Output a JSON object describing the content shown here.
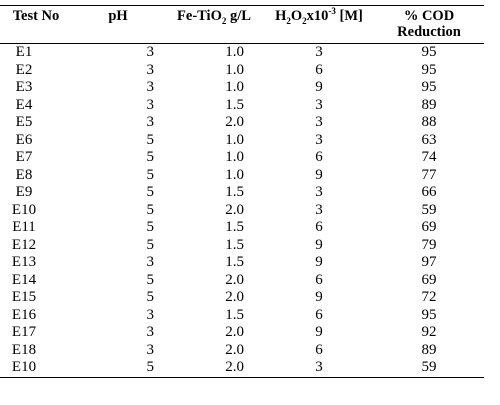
{
  "headers": {
    "test_no": "Test No",
    "ph": "pH",
    "fe_tio2_prefix": "Fe-TiO",
    "fe_tio2_sub": "2",
    "fe_tio2_suffix": " g/L",
    "h2o2_h": "H",
    "h2o2_sub1": "2",
    "h2o2_o": "O",
    "h2o2_sub2": "2",
    "h2o2_x": "x10",
    "h2o2_sup": "-3",
    "h2o2_unit": " [M]",
    "cod_line1": "% COD",
    "cod_line2": "Reduction"
  },
  "rows": [
    {
      "test": "E1",
      "ph": "3",
      "fe": "1.0",
      "h2o2": "3",
      "cod": "95"
    },
    {
      "test": "E2",
      "ph": "3",
      "fe": "1.0",
      "h2o2": "6",
      "cod": "95"
    },
    {
      "test": "E3",
      "ph": "3",
      "fe": "1.0",
      "h2o2": "9",
      "cod": "95"
    },
    {
      "test": "E4",
      "ph": "3",
      "fe": "1.5",
      "h2o2": "3",
      "cod": "89"
    },
    {
      "test": "E5",
      "ph": "3",
      "fe": "2.0",
      "h2o2": "3",
      "cod": "88"
    },
    {
      "test": "E6",
      "ph": "5",
      "fe": "1.0",
      "h2o2": "3",
      "cod": "63"
    },
    {
      "test": "E7",
      "ph": "5",
      "fe": "1.0",
      "h2o2": "6",
      "cod": "74"
    },
    {
      "test": "E8",
      "ph": "5",
      "fe": "1.0",
      "h2o2": "9",
      "cod": "77"
    },
    {
      "test": "E9",
      "ph": "5",
      "fe": "1.5",
      "h2o2": "3",
      "cod": "66"
    },
    {
      "test": "E10",
      "ph": "5",
      "fe": "2.0",
      "h2o2": "3",
      "cod": "59"
    },
    {
      "test": "E11",
      "ph": "5",
      "fe": "1.5",
      "h2o2": "6",
      "cod": "69"
    },
    {
      "test": "E12",
      "ph": "5",
      "fe": "1.5",
      "h2o2": "9",
      "cod": "79"
    },
    {
      "test": "E13",
      "ph": "3",
      "fe": "1.5",
      "h2o2": "9",
      "cod": "97"
    },
    {
      "test": "E14",
      "ph": "5",
      "fe": "2.0",
      "h2o2": "6",
      "cod": "69"
    },
    {
      "test": "E15",
      "ph": "5",
      "fe": "2.0",
      "h2o2": "9",
      "cod": "72"
    },
    {
      "test": "E16",
      "ph": "3",
      "fe": "1.5",
      "h2o2": "6",
      "cod": "95"
    },
    {
      "test": "E17",
      "ph": "3",
      "fe": "2.0",
      "h2o2": "9",
      "cod": "92"
    },
    {
      "test": "E18",
      "ph": "3",
      "fe": "2.0",
      "h2o2": "6",
      "cod": "89"
    },
    {
      "test": "E10",
      "ph": "5",
      "fe": "2.0",
      "h2o2": "3",
      "cod": "59"
    }
  ]
}
